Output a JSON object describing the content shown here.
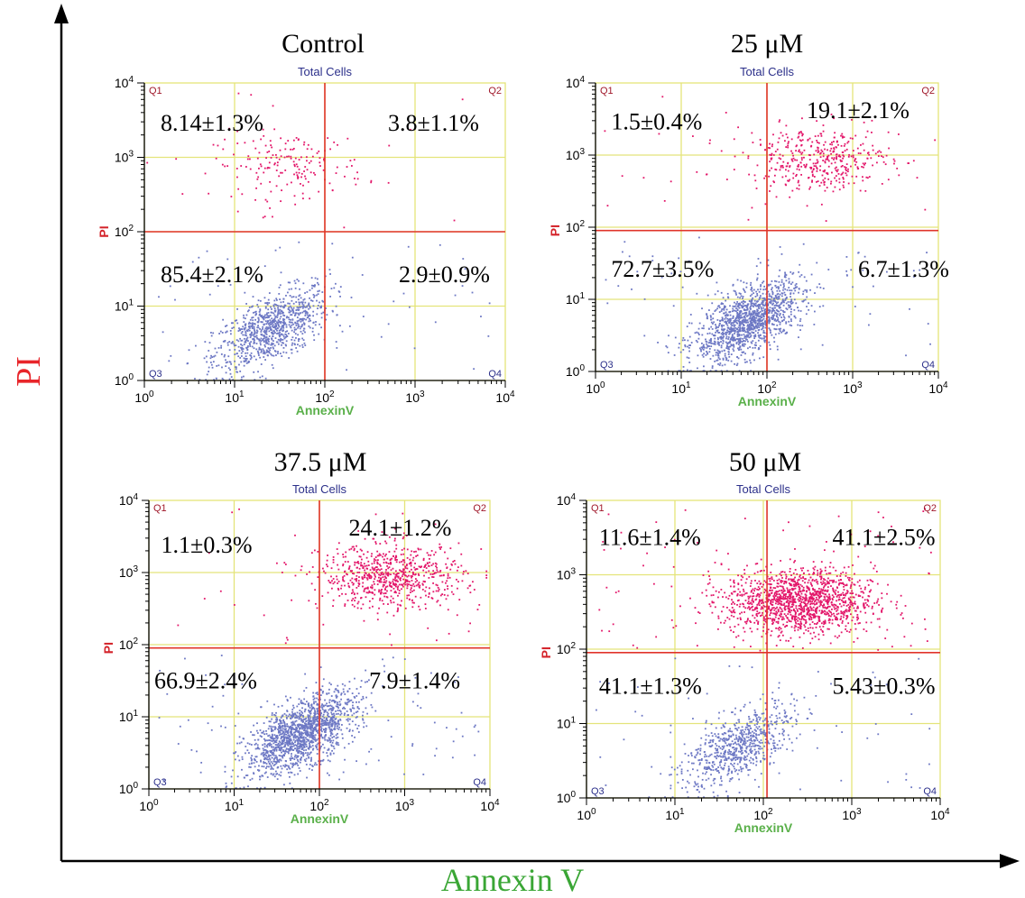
{
  "figure": {
    "ylabel": "PI",
    "xlabel": "Annexin V",
    "colors": {
      "ylabel": "#e8252a",
      "xlabel": "#3aa635",
      "gate": "#e0342a",
      "grid": "#e4e47a",
      "live": "#6d78c4",
      "dead": "#e3176a",
      "panel_text": "#2b2f8a",
      "quad_label": "#2b2f8a",
      "q1q2_label": "#a0182a",
      "axis_title_small_x": "#5ab04a",
      "axis_title_small_y": "#d4232a"
    }
  },
  "chart_data": [
    {
      "type": "scatter",
      "title": "Control",
      "subtitle": "Total Cells",
      "xlabel": "AnnexinV",
      "ylabel": "PI",
      "xscale": "log",
      "yscale": "log",
      "xlim": [
        1,
        10000
      ],
      "ylim": [
        1,
        10000
      ],
      "x_ticks": [
        "10^0",
        "10^1",
        "10^2",
        "10^3",
        "10^4"
      ],
      "y_ticks": [
        "10^0",
        "10^1",
        "10^2",
        "10^3",
        "10^4"
      ],
      "gates": {
        "x": 100,
        "y": 100
      },
      "quadrant_labels": [
        "Q1",
        "Q2",
        "Q3",
        "Q4"
      ],
      "quadrant_percent": {
        "Q1": "8.14±1.3%",
        "Q2": "3.8±1.1%",
        "Q3": "85.4±2.1%",
        "Q4": "2.9±0.9%"
      },
      "clusters": [
        {
          "quadrant": "Q3",
          "center": [
            25,
            5
          ],
          "count": 900
        },
        {
          "quadrant": "Q1/Q2",
          "center": [
            40,
            800
          ],
          "count": 180
        }
      ]
    },
    {
      "type": "scatter",
      "title": "25 μM",
      "subtitle": "Total Cells",
      "xlabel": "AnnexinV",
      "ylabel": "PI",
      "xscale": "log",
      "yscale": "log",
      "xlim": [
        1,
        10000
      ],
      "ylim": [
        1,
        10000
      ],
      "x_ticks": [
        "10^0",
        "10^1",
        "10^2",
        "10^3",
        "10^4"
      ],
      "y_ticks": [
        "10^0",
        "10^1",
        "10^2",
        "10^3",
        "10^4"
      ],
      "gates": {
        "x": 100,
        "y": 90
      },
      "quadrant_labels": [
        "Q1",
        "Q2",
        "Q3",
        "Q4"
      ],
      "quadrant_percent": {
        "Q1": "1.5±0.4%",
        "Q2": "19.1±2.1%",
        "Q3": "72.7±3.5%",
        "Q4": "6.7±1.3%"
      },
      "clusters": [
        {
          "quadrant": "Q3/Q4",
          "center": [
            60,
            5
          ],
          "count": 1300
        },
        {
          "quadrant": "Q2",
          "center": [
            400,
            900
          ],
          "count": 420
        }
      ]
    },
    {
      "type": "scatter",
      "title": "37.5 μM",
      "subtitle": "Total Cells",
      "xlabel": "AnnexinV",
      "ylabel": "PI",
      "xscale": "log",
      "yscale": "log",
      "xlim": [
        1,
        10000
      ],
      "ylim": [
        1,
        10000
      ],
      "x_ticks": [
        "10^0",
        "10^1",
        "10^2",
        "10^3",
        "10^4"
      ],
      "y_ticks": [
        "10^0",
        "10^1",
        "10^2",
        "10^3",
        "10^4"
      ],
      "gates": {
        "x": 100,
        "y": 90
      },
      "quadrant_labels": [
        "Q1",
        "Q2",
        "Q3",
        "Q4"
      ],
      "quadrant_percent": {
        "Q1": "1.1±0.3%",
        "Q2": "24.1±1.2%",
        "Q3": "66.9±2.4%",
        "Q4": "7.9±1.4%"
      },
      "clusters": [
        {
          "quadrant": "Q3/Q4",
          "center": [
            60,
            6
          ],
          "count": 1500
        },
        {
          "quadrant": "Q2",
          "center": [
            700,
            900
          ],
          "count": 700
        }
      ]
    },
    {
      "type": "scatter",
      "title": "50 μM",
      "subtitle": "Total Cells",
      "xlabel": "AnnexinV",
      "ylabel": "PI",
      "xscale": "log",
      "yscale": "log",
      "xlim": [
        1,
        10000
      ],
      "ylim": [
        1,
        10000
      ],
      "x_ticks": [
        "10^0",
        "10^1",
        "10^2",
        "10^3",
        "10^4"
      ],
      "y_ticks": [
        "10^0",
        "10^1",
        "10^2",
        "10^3",
        "10^4"
      ],
      "gates": {
        "x": 110,
        "y": 90
      },
      "quadrant_labels": [
        "Q1",
        "Q2",
        "Q3",
        "Q4"
      ],
      "quadrant_percent": {
        "Q1": "11.6±1.4%",
        "Q2": "41.1±2.5%",
        "Q3": "41.1±1.3%",
        "Q4": "5.43±0.3%"
      },
      "clusters": [
        {
          "quadrant": "Q3",
          "center": [
            50,
            5
          ],
          "count": 700
        },
        {
          "quadrant": "Q2",
          "center": [
            250,
            450
          ],
          "count": 1400
        }
      ]
    }
  ]
}
